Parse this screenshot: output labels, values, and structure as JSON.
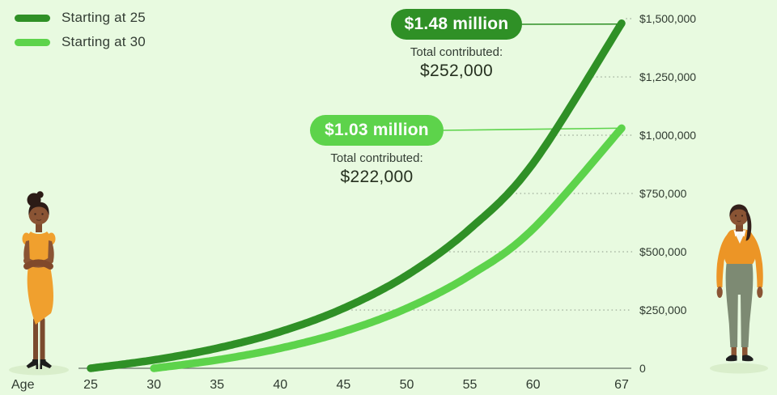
{
  "colors": {
    "background": "#e8fae0",
    "dark_green": "#2f9026",
    "light_green": "#5dd34b",
    "grid_dots": "#a5b3a0",
    "axis_line": "#647265",
    "text": "#333d34"
  },
  "chart_data": {
    "type": "line",
    "title": "",
    "legend_position": "top-left",
    "x_axis": {
      "label": "Age",
      "ticks": [
        25,
        30,
        35,
        40,
        45,
        50,
        55,
        60,
        67
      ],
      "range": [
        25,
        67
      ],
      "grid": false
    },
    "y_axis": {
      "label": "",
      "range": [
        0,
        1500000
      ],
      "gridlines": "dotted leaders from dark series to right axis",
      "ticks": [
        {
          "value": 0,
          "label": "0"
        },
        {
          "value": 250000,
          "label": "$250,000"
        },
        {
          "value": 500000,
          "label": "$500,000"
        },
        {
          "value": 750000,
          "label": "$750,000"
        },
        {
          "value": 1000000,
          "label": "$1,000,000"
        },
        {
          "value": 1250000,
          "label": "$1,250,000"
        },
        {
          "value": 1500000,
          "label": "$1,500,000"
        }
      ]
    },
    "series": [
      {
        "name": "Starting at 25",
        "color": "#2f9026",
        "points": [
          [
            25,
            0
          ],
          [
            30,
            35700
          ],
          [
            35,
            86100
          ],
          [
            40,
            157100
          ],
          [
            45,
            257300
          ],
          [
            50,
            398700
          ],
          [
            55,
            598100
          ],
          [
            60,
            879300
          ],
          [
            67,
            1480000
          ]
        ],
        "callout": {
          "headline": "$1.48 million",
          "sub_label": "Total contributed:",
          "sub_value": "$252,000"
        }
      },
      {
        "name": "Starting at 30",
        "color": "#5dd34b",
        "points": [
          [
            30,
            0
          ],
          [
            35,
            35700
          ],
          [
            40,
            86100
          ],
          [
            45,
            157100
          ],
          [
            50,
            257300
          ],
          [
            55,
            398700
          ],
          [
            60,
            598100
          ],
          [
            67,
            1030000
          ]
        ],
        "callout": {
          "headline": "$1.03 million",
          "sub_label": "Total contributed:",
          "sub_value": "$222,000"
        }
      }
    ],
    "illustrations": {
      "left": "young woman, arms crossed, orange dress, black heels",
      "right": "older woman, orange v-neck sweater, gray pants, black flats"
    }
  }
}
